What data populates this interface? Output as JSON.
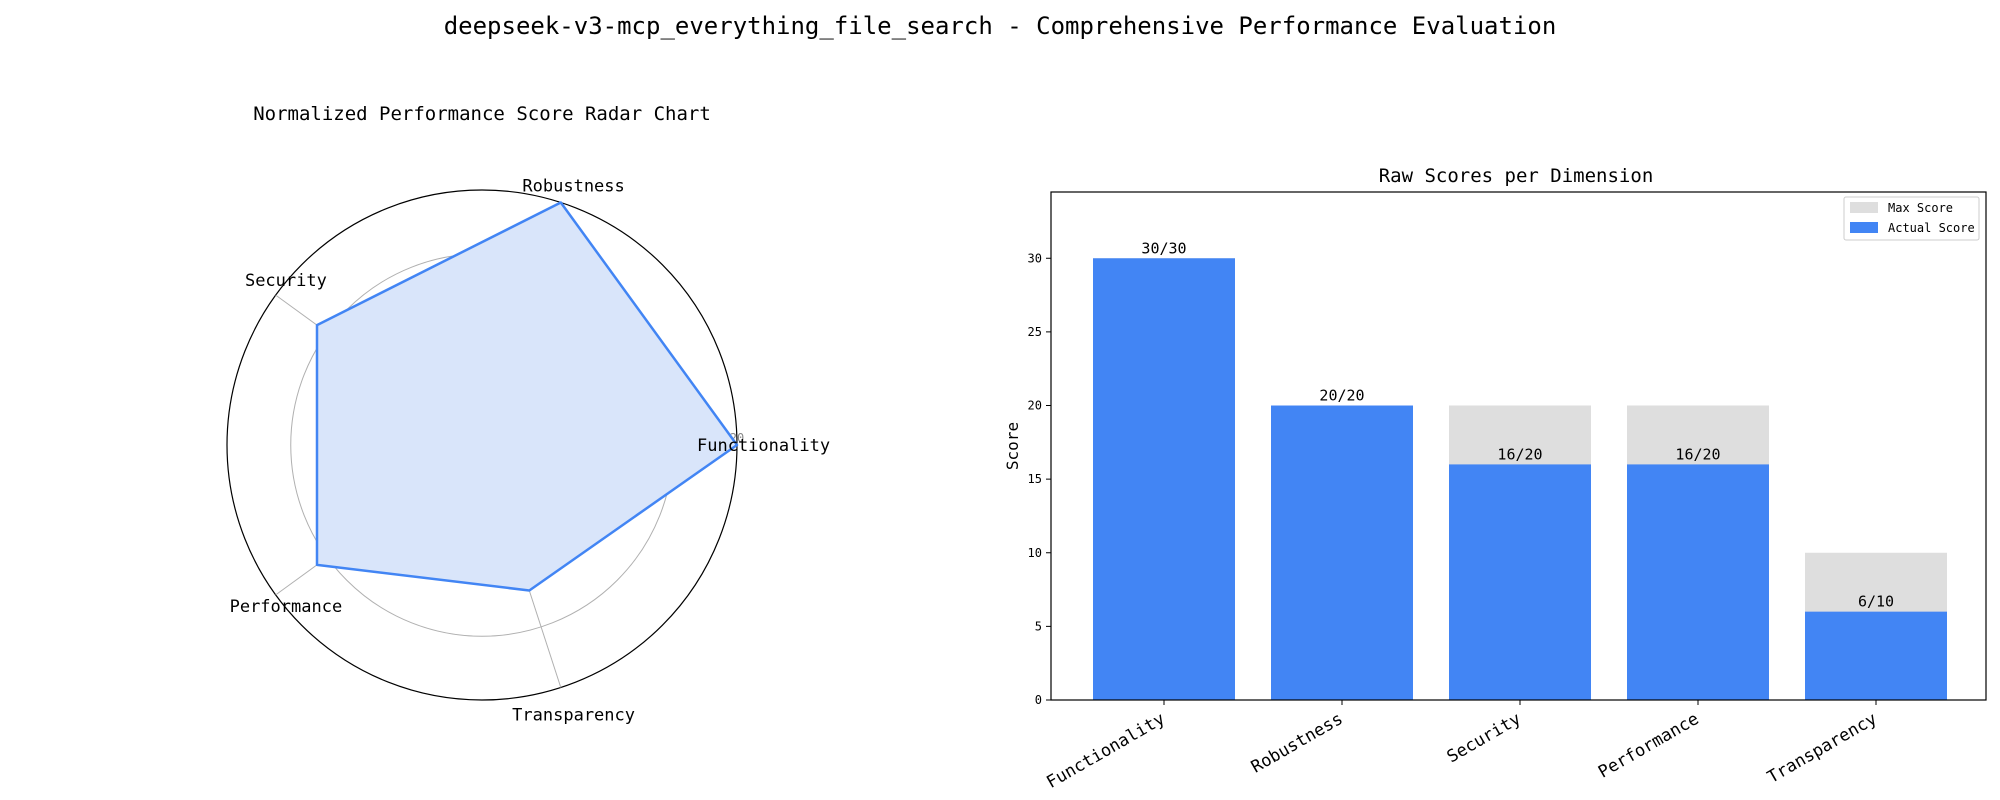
{
  "figure": {
    "title": "deepseek-v3-mcp_everything_file_search - Comprehensive Performance Evaluation"
  },
  "colors": {
    "accent": "#4285F4",
    "radar_fill": "#d9e5fa",
    "max_bar": "#dedede",
    "grid": "#b0b0b0",
    "text": "#000000"
  },
  "chart_data": [
    {
      "type": "radar",
      "title": "Normalized Performance Score Radar Chart",
      "categories": [
        "Functionality",
        "Robustness",
        "Security",
        "Performance",
        "Transparency"
      ],
      "values": [
        20,
        20,
        16,
        16,
        12
      ],
      "rlim": [
        0,
        20
      ],
      "rticks": [
        5,
        10,
        15,
        20
      ],
      "grid": true
    },
    {
      "type": "bar",
      "title": "Raw Scores per Dimension",
      "xlabel": "",
      "ylabel": "Score",
      "categories": [
        "Functionality",
        "Robustness",
        "Security",
        "Performance",
        "Transparency"
      ],
      "ylim": [
        0,
        34.5
      ],
      "yticks": [
        0,
        5,
        10,
        15,
        20,
        25,
        30
      ],
      "series": [
        {
          "name": "Max Score",
          "values": [
            30,
            20,
            20,
            20,
            10
          ]
        },
        {
          "name": "Actual Score",
          "values": [
            30,
            20,
            16,
            16,
            6
          ]
        }
      ],
      "data_labels": [
        "30/30",
        "20/20",
        "16/20",
        "16/20",
        "6/10"
      ],
      "legend": "top-right",
      "grid": false
    }
  ]
}
